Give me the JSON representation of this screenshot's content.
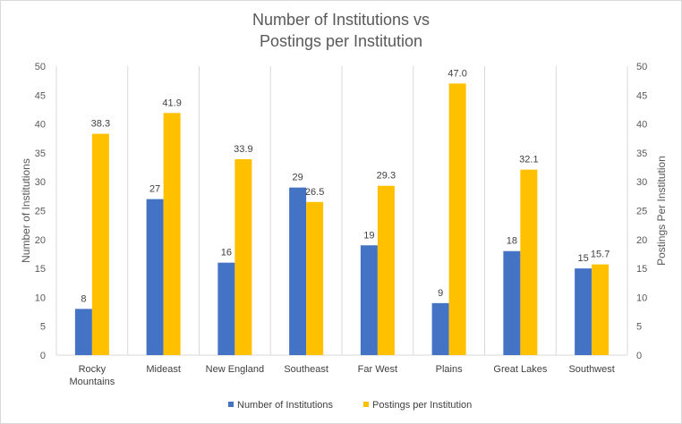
{
  "chart_data": {
    "type": "bar",
    "title": [
      "Number of Institutions vs",
      "Postings per Institution"
    ],
    "categories": [
      [
        "Rocky",
        "Mountains"
      ],
      [
        "Mideast"
      ],
      [
        "New England"
      ],
      [
        "Southeast"
      ],
      [
        "Far West"
      ],
      [
        "Plains"
      ],
      [
        "Great Lakes"
      ],
      [
        "Southwest"
      ]
    ],
    "series": [
      {
        "name": "Number of Institutions",
        "axis": "left",
        "color": "#4472C4",
        "values": [
          8,
          27,
          16,
          29,
          19,
          9,
          18,
          15
        ],
        "labels": [
          "8",
          "27",
          "16",
          "29",
          "19",
          "9",
          "18",
          "15"
        ]
      },
      {
        "name": "Postings per Institution",
        "axis": "right",
        "color": "#FFC000",
        "values": [
          38.3,
          41.9,
          33.9,
          26.5,
          29.3,
          47.0,
          32.1,
          15.7
        ],
        "labels": [
          "38.3",
          "41.9",
          "33.9",
          "26.5",
          "29.3",
          "47.0",
          "32.1",
          "15.7"
        ]
      }
    ],
    "ylabel": "Number of Institutions",
    "y2label": "Postings Per Institution",
    "ylim": [
      0,
      50
    ],
    "y2lim": [
      0,
      50
    ],
    "yticks": [
      "0",
      "5",
      "10",
      "15",
      "20",
      "25",
      "30",
      "35",
      "40",
      "45",
      "50"
    ],
    "y2ticks": [
      "0",
      "5",
      "10",
      "15",
      "20",
      "25",
      "30",
      "35",
      "40",
      "45",
      "50"
    ],
    "grid": "vertical category separators",
    "legend_position": "bottom"
  }
}
